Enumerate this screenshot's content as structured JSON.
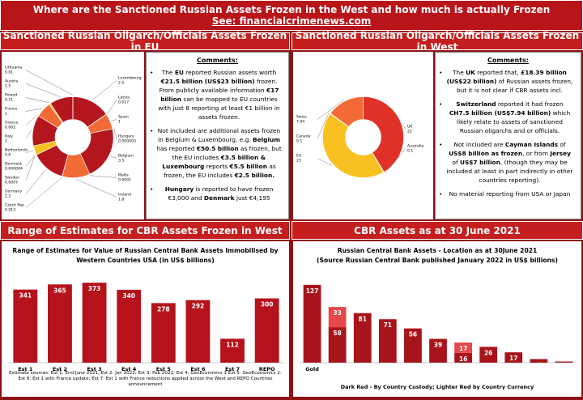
{
  "header": {
    "title": "Where are the Sanctioned Russian Assets Frozen in the West and how much is actually Frozen",
    "subtitle": "See: financialcrimenews.com"
  },
  "sections": [
    "Sanctioned Russian Oligarch/Officials Assets Frozen in EU",
    "Sanctioned Russian Oligarch/Officials Assets Frozen in West",
    "Range of Estimates for CBR Assets Frozen in West",
    "CBR Assets as at 30 June 2021"
  ],
  "comments": [
    {
      "title": "Comments:",
      "paragraphs": [
        [
          {
            "t": "The ",
            "b": false
          },
          {
            "t": "EU",
            "b": true
          },
          {
            "t": " reported Russian assets worth ",
            "b": false
          },
          {
            "t": "€21.5 billion (US$23 billion)",
            "b": true
          },
          {
            "t": " frozen. From publicly available information ",
            "b": false
          },
          {
            "t": "€17 billion",
            "b": true
          },
          {
            "t": " can be mapped to EU countries with just 8 reporting at least €1 billion in assets frozen.",
            "b": false
          }
        ],
        [
          {
            "t": "Not included are additional assets frozen in Belgium & Luxembourg, e.g. ",
            "b": false
          },
          {
            "t": "Belgium",
            "b": true
          },
          {
            "t": " has reported ",
            "b": false
          },
          {
            "t": "€50.5 billion",
            "b": true
          },
          {
            "t": " as frozen, but the EU includes ",
            "b": false
          },
          {
            "t": "€3.5 billion & Luxembourg",
            "b": true
          },
          {
            "t": " reports ",
            "b": false
          },
          {
            "t": "€5.5 billion",
            "b": true
          },
          {
            "t": " as frozen, the EU includes ",
            "b": false
          },
          {
            "t": "€2.5 billion.",
            "b": true
          }
        ],
        [
          {
            "t": "Hungary",
            "b": true
          },
          {
            "t": " is reported to have frozen €3,000 and ",
            "b": false
          },
          {
            "t": "Denmark",
            "b": true
          },
          {
            "t": " just €4,195",
            "b": false
          }
        ]
      ]
    },
    {
      "title": "Comments:",
      "paragraphs": [
        [
          {
            "t": "The ",
            "b": false
          },
          {
            "t": "UK",
            "b": true
          },
          {
            "t": " reported that, ",
            "b": false
          },
          {
            "t": "£18.39 billion (US$22 billion)",
            "b": true
          },
          {
            "t": " of Russian assets frozen, but it is not clear if CBR assets incl.",
            "b": false
          }
        ],
        [
          {
            "t": "Switzerland",
            "b": true
          },
          {
            "t": " reported it had frozen ",
            "b": false
          },
          {
            "t": "CH7.5 billion (US$7.94 billion)",
            "b": true
          },
          {
            "t": " which likely relate to assets of sanctioned Russian oligarchs and or officials.",
            "b": false
          }
        ],
        [
          {
            "t": "Not included are ",
            "b": false
          },
          {
            "t": "Cayman Islands",
            "b": true
          },
          {
            "t": " of ",
            "b": false
          },
          {
            "t": "US$8 billion as frozen",
            "b": true
          },
          {
            "t": ", or from ",
            "b": false
          },
          {
            "t": "Jersey",
            "b": true
          },
          {
            "t": " of ",
            "b": false
          },
          {
            "t": "US$7 billion",
            "b": true
          },
          {
            "t": ", (though they may be included at least in part indirectly in other countries reporting).",
            "b": false
          }
        ],
        [
          {
            "t": "No material reporting from USA or Japan",
            "b": false
          }
        ]
      ]
    }
  ],
  "chart_data": [
    {
      "type": "donut",
      "categories": [
        "Luxembourg",
        "Latvia",
        "Spain",
        "Hungary",
        "Belgium",
        "Malta",
        "Ireland",
        "Czech Rep",
        "Germany",
        "Sweden",
        "Denmark",
        "Netherlands",
        "Italy",
        "Greece",
        "France",
        "Poland",
        "Austria",
        "Lithuania"
      ],
      "values": [
        2.5,
        0.017,
        1,
        3e-06,
        3.5,
        0.0001,
        1.8,
        0.013,
        2.2,
        0.0007,
        4e-06,
        0.6,
        2,
        0.002,
        1,
        0.11,
        1.5,
        0.01
      ],
      "colors": [
        "#b3161c",
        "#e5352b",
        "#f26a35",
        "#f8c021"
      ]
    },
    {
      "type": "donut",
      "categories": [
        "UK",
        "Australia",
        "EU",
        "Canada",
        "Swiss"
      ],
      "values": [
        22,
        0.1,
        23,
        0.1,
        7.94
      ],
      "colors": [
        "#e03228",
        "#b3161c",
        "#f8c021",
        "#f59a2b",
        "#f26a35"
      ]
    },
    {
      "type": "bar",
      "title": "Range of Estimates for Value of Russian Central Bank Assets Immobilised by",
      "subtitle": "Western Countries USA (in US$ billions)",
      "categories": [
        "Est 1",
        "Est 2",
        "Est 3",
        "Est 4",
        "Est 5",
        "Est 6",
        "Est 7",
        "REPO"
      ],
      "series": [
        {
          "color": "#b5121b",
          "values": [
            341,
            365,
            373,
            340,
            278,
            292,
            112,
            300
          ]
        }
      ],
      "ylim": [
        0,
        400
      ],
      "footnote": "Estimate sources: Est 1: End June 2021, Est 2: Jan 2022; Est 3: Feb 2022; Est 4: GeoEconimics 1 Est 5: GeoEconomics 2: Est 6: Est 1 with France update; Est 7: Est 1 with France reductions applied across the West and REPO Countries announcement"
    },
    {
      "type": "bar",
      "title": "Russian Central Bank Assets - Location as at 30June 2021",
      "subtitle": "(Source Russian Central Bank published January 2022 in US$ billions)",
      "categories": [
        "Gold",
        null,
        null,
        null,
        null,
        null,
        null,
        null,
        null,
        null,
        null
      ],
      "series": [
        {
          "color": "#a8141b",
          "values": [
            127,
            58,
            81,
            71,
            56,
            39,
            16,
            26,
            17,
            6,
            2
          ]
        },
        {
          "color": "#e8474a",
          "values": [
            null,
            33,
            null,
            null,
            null,
            null,
            17,
            null,
            null,
            null,
            null
          ]
        }
      ],
      "ylim": [
        0,
        140
      ],
      "note": "Dark Red - By Country Custody; Lighter Red by Country Currency"
    }
  ]
}
